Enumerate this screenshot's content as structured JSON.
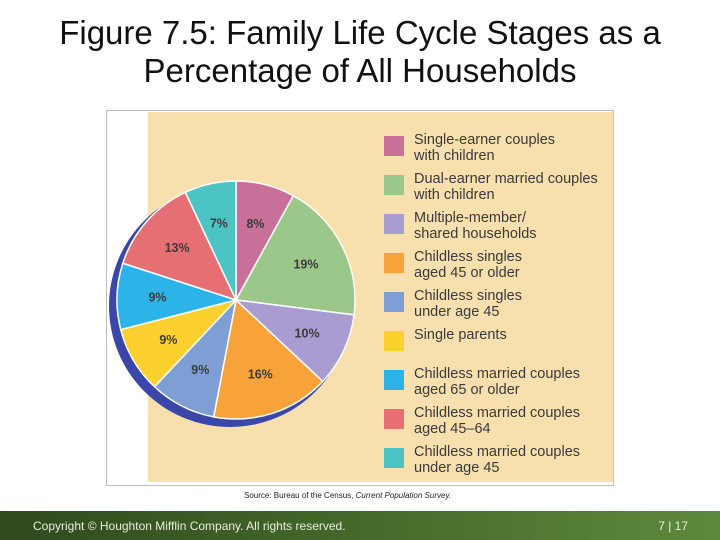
{
  "slide": {
    "title": "Figure 7.5: Family Life Cycle Stages as a Percentage of All Households"
  },
  "chart_data": {
    "type": "pie",
    "title": "",
    "categories": [
      "Single-earner couples\nwith children",
      "Dual-earner married couples\nwith children",
      "Multiple-member/\nshared households",
      "Childless singles\naged 45 or older",
      "Childless singles\nunder age 45",
      "Single parents",
      "Childless married couples\naged 65 or older",
      "Childless married couples\naged 45–64",
      "Childless married couples\nunder age 45"
    ],
    "values": [
      8,
      19,
      10,
      16,
      9,
      9,
      9,
      13,
      7
    ],
    "data_labels": [
      "8%",
      "19%",
      "10%",
      "16%",
      "9%",
      "9%",
      "9%",
      "13%",
      "7%"
    ],
    "colors": [
      "#c8709a",
      "#9bc88a",
      "#a89cd0",
      "#f7a33a",
      "#7f9ed6",
      "#fcd12f",
      "#2cb4e8",
      "#e56f72",
      "#4cc4c4"
    ],
    "edge_color": "#3a47a8",
    "legend_position": "right",
    "source_prefix": "Source: Bureau of the Census, ",
    "source_title": "Current Population Survey."
  },
  "footer": {
    "copyright": "Copyright © Houghton Mifflin Company. All rights reserved.",
    "page": "7 | 17"
  }
}
